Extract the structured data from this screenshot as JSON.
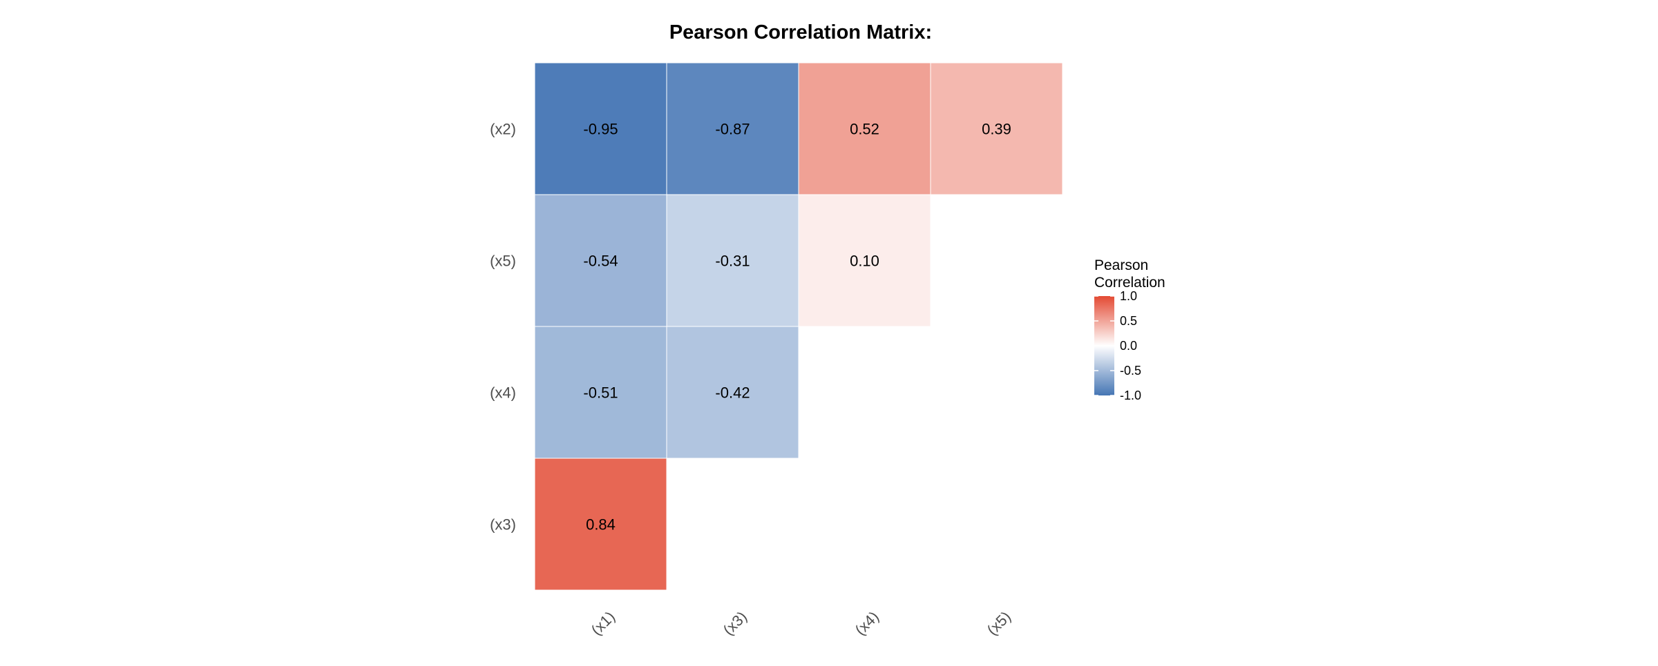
{
  "chart_data": {
    "type": "heatmap",
    "title": "Pearson Correlation Matrix:",
    "x_labels": [
      "(x1)",
      "(x3)",
      "(x4)",
      "(x5)"
    ],
    "y_labels": [
      "(x2)",
      "(x5)",
      "(x4)",
      "(x3)"
    ],
    "cells": [
      {
        "x": "(x1)",
        "y": "(x2)",
        "value": -0.95,
        "label": "-0.95"
      },
      {
        "x": "(x3)",
        "y": "(x2)",
        "value": -0.87,
        "label": "-0.87"
      },
      {
        "x": "(x4)",
        "y": "(x2)",
        "value": 0.52,
        "label": "0.52"
      },
      {
        "x": "(x5)",
        "y": "(x2)",
        "value": 0.39,
        "label": "0.39"
      },
      {
        "x": "(x1)",
        "y": "(x5)",
        "value": -0.54,
        "label": "-0.54"
      },
      {
        "x": "(x3)",
        "y": "(x5)",
        "value": -0.31,
        "label": "-0.31"
      },
      {
        "x": "(x4)",
        "y": "(x5)",
        "value": 0.1,
        "label": "0.10"
      },
      {
        "x": "(x1)",
        "y": "(x4)",
        "value": -0.51,
        "label": "-0.51"
      },
      {
        "x": "(x3)",
        "y": "(x4)",
        "value": -0.42,
        "label": "-0.42"
      },
      {
        "x": "(x1)",
        "y": "(x3)",
        "value": 0.84,
        "label": "0.84"
      }
    ],
    "legend": {
      "title_lines": [
        "Pearson",
        "Correlation"
      ],
      "ticks": [
        {
          "value": 1.0,
          "label": "1.0"
        },
        {
          "value": 0.5,
          "label": "0.5"
        },
        {
          "value": 0.0,
          "label": "0.0"
        },
        {
          "value": -0.5,
          "label": "-0.5"
        },
        {
          "value": -1.0,
          "label": "-1.0"
        }
      ],
      "range": [
        -1,
        1
      ],
      "placement": "right"
    },
    "color_scale": {
      "low": "#4575b4",
      "mid": "#ffffff",
      "high": "#e34a33"
    }
  }
}
